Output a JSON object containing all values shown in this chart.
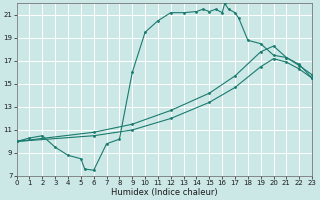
{
  "xlabel": "Humidex (Indice chaleur)",
  "xlim": [
    0,
    23
  ],
  "ylim": [
    7,
    22
  ],
  "xticks": [
    0,
    1,
    2,
    3,
    4,
    5,
    6,
    7,
    8,
    9,
    10,
    11,
    12,
    13,
    14,
    15,
    16,
    17,
    18,
    19,
    20,
    21,
    22,
    23
  ],
  "yticks": [
    7,
    9,
    11,
    13,
    15,
    17,
    19,
    21
  ],
  "bg_color": "#cce8e6",
  "grid_color": "#b8d8d5",
  "line_color": "#1a7a6e",
  "curve_main_x": [
    0,
    1,
    2,
    3,
    4,
    5,
    5.3,
    6,
    7,
    8,
    9,
    10,
    11,
    12,
    13,
    14,
    14.5,
    15,
    15.5,
    16,
    16.2,
    16.5,
    17,
    17.3,
    18,
    19,
    20,
    21,
    22,
    23
  ],
  "curve_main_y": [
    10,
    10.3,
    10.5,
    9.5,
    8.8,
    8.5,
    7.6,
    7.5,
    9.8,
    10.2,
    16.0,
    19.5,
    20.5,
    21.2,
    21.2,
    21.3,
    21.5,
    21.3,
    21.5,
    21.2,
    22.0,
    21.5,
    21.2,
    20.7,
    18.8,
    18.5,
    17.5,
    17.3,
    16.6,
    15.8
  ],
  "curve_upper_x": [
    0,
    6,
    9,
    12,
    15,
    17,
    19,
    20,
    21,
    22,
    23
  ],
  "curve_upper_y": [
    10,
    10.8,
    11.5,
    12.7,
    14.2,
    15.7,
    17.8,
    18.3,
    17.3,
    16.7,
    15.5
  ],
  "curve_lower_x": [
    0,
    6,
    9,
    12,
    15,
    17,
    19,
    20,
    21,
    22,
    23
  ],
  "curve_lower_y": [
    10,
    10.5,
    11.0,
    12.0,
    13.4,
    14.7,
    16.5,
    17.2,
    16.9,
    16.3,
    15.5
  ]
}
